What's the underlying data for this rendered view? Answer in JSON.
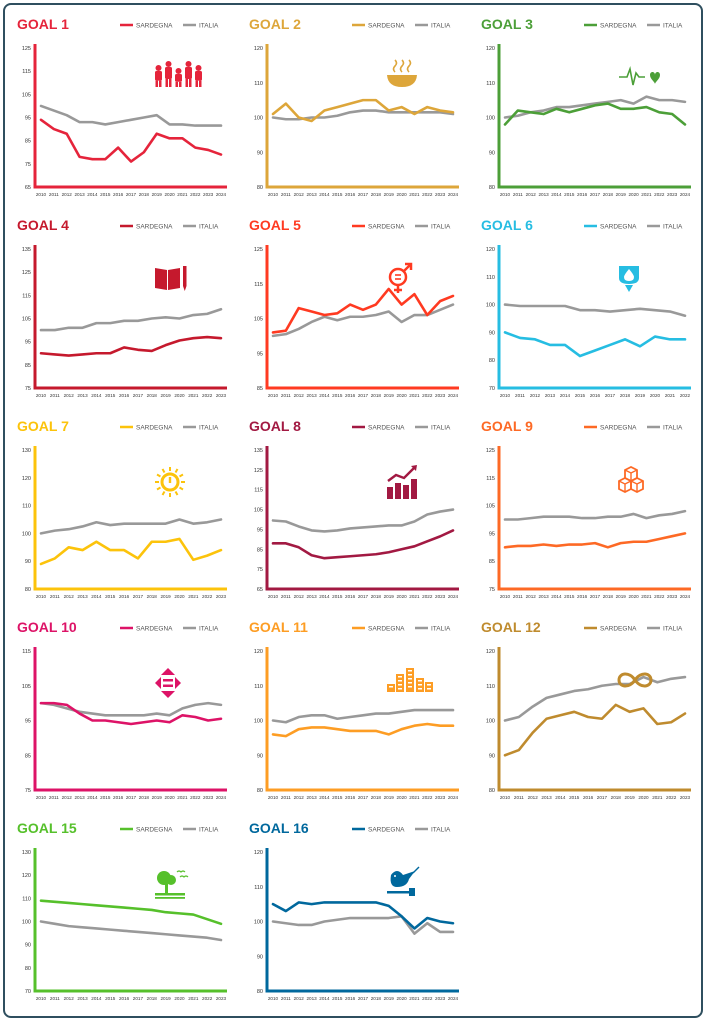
{
  "legend": {
    "sardegna": "SARDEGNA",
    "italia": "ITALIA",
    "italia_color": "#999999"
  },
  "chart_data": [
    {
      "type": "line",
      "title": "GOAL 1",
      "color": "#e5243b",
      "icon": "people-family-icon",
      "categories": [
        "2010",
        "2011",
        "2012",
        "2013",
        "2014",
        "2015",
        "2016",
        "2017",
        "2018",
        "2019",
        "2020",
        "2021",
        "2022",
        "2023",
        "2024"
      ],
      "ylim": [
        65,
        125
      ],
      "yticks": [
        65,
        75,
        85,
        95,
        105,
        115,
        125
      ],
      "series": [
        {
          "name": "SARDEGNA",
          "values": [
            94,
            90,
            88,
            78,
            77,
            77,
            82,
            76,
            80,
            88,
            86,
            86,
            82,
            81,
            79
          ]
        },
        {
          "name": "ITALIA",
          "values": [
            100,
            98,
            96,
            93,
            93,
            92,
            93,
            94,
            95,
            96,
            92,
            92,
            91.5,
            91.5,
            91.5
          ]
        }
      ]
    },
    {
      "type": "line",
      "title": "GOAL 2",
      "color": "#dda63a",
      "icon": "food-bowl-icon",
      "categories": [
        "2010",
        "2011",
        "2012",
        "2013",
        "2014",
        "2015",
        "2016",
        "2017",
        "2018",
        "2019",
        "2020",
        "2021",
        "2022",
        "2023",
        "2024"
      ],
      "ylim": [
        80,
        120
      ],
      "yticks": [
        80,
        90,
        100,
        110,
        120
      ],
      "series": [
        {
          "name": "SARDEGNA",
          "values": [
            101,
            104,
            100,
            99,
            102,
            103,
            104,
            105,
            105,
            102,
            103,
            101,
            103,
            102,
            101.5
          ]
        },
        {
          "name": "ITALIA",
          "values": [
            100,
            99.5,
            99.5,
            100,
            100,
            100.5,
            101.5,
            102,
            102,
            101.5,
            101.5,
            101.5,
            101.5,
            101.5,
            101
          ]
        }
      ]
    },
    {
      "type": "line",
      "title": "GOAL 3",
      "color": "#4c9f38",
      "icon": "heartbeat-icon",
      "categories": [
        "2010",
        "2011",
        "2012",
        "2013",
        "2014",
        "2015",
        "2016",
        "2017",
        "2018",
        "2019",
        "2020",
        "2021",
        "2022",
        "2023",
        "2024"
      ],
      "ylim": [
        80,
        120
      ],
      "yticks": [
        80,
        90,
        100,
        110,
        120
      ],
      "series": [
        {
          "name": "SARDEGNA",
          "values": [
            98,
            102,
            101.5,
            101,
            102.5,
            101.5,
            102.5,
            103.5,
            104,
            102.5,
            102.5,
            103,
            101.5,
            101,
            98
          ]
        },
        {
          "name": "ITALIA",
          "values": [
            100,
            100.5,
            101.5,
            102,
            103,
            103,
            103.5,
            104,
            104.5,
            105,
            104,
            106,
            105,
            105,
            104.5
          ]
        }
      ]
    },
    {
      "type": "line",
      "title": "GOAL 4",
      "color": "#c5192d",
      "icon": "book-pencil-icon",
      "categories": [
        "2010",
        "2011",
        "2012",
        "2013",
        "2014",
        "2015",
        "2016",
        "2017",
        "2018",
        "2019",
        "2020",
        "2021",
        "2022",
        "2023"
      ],
      "ylim": [
        75,
        135
      ],
      "yticks": [
        75,
        85,
        95,
        105,
        115,
        125,
        135
      ],
      "series": [
        {
          "name": "SARDEGNA",
          "values": [
            90,
            89.5,
            89,
            89.5,
            90,
            90,
            92.5,
            91.5,
            91,
            93.5,
            95.5,
            96.5,
            97,
            96.5
          ]
        },
        {
          "name": "ITALIA",
          "values": [
            100,
            100,
            101,
            101,
            103,
            103,
            104,
            104,
            105,
            105.5,
            105,
            106.5,
            107,
            109
          ]
        }
      ]
    },
    {
      "type": "line",
      "title": "GOAL 5",
      "color": "#ff3a21",
      "icon": "gender-equality-icon",
      "categories": [
        "2010",
        "2011",
        "2012",
        "2013",
        "2014",
        "2015",
        "2016",
        "2017",
        "2018",
        "2019",
        "2020",
        "2021",
        "2022",
        "2023",
        "2024"
      ],
      "ylim": [
        85,
        125
      ],
      "yticks": [
        85,
        95,
        105,
        115,
        125
      ],
      "series": [
        {
          "name": "SARDEGNA",
          "values": [
            101,
            101.5,
            108,
            107,
            106,
            106.5,
            109,
            107.5,
            109,
            113.5,
            109,
            112,
            106,
            110,
            111.5
          ]
        },
        {
          "name": "ITALIA",
          "values": [
            100,
            100.5,
            102,
            104,
            105.5,
            104.5,
            105.5,
            105.5,
            106,
            107,
            104,
            106,
            106,
            107.5,
            109
          ]
        }
      ]
    },
    {
      "type": "line",
      "title": "GOAL 6",
      "color": "#26bde2",
      "icon": "water-drop-icon",
      "categories": [
        "2010",
        "2011",
        "2012",
        "2013",
        "2014",
        "2015",
        "2016",
        "2017",
        "2018",
        "2019",
        "2020",
        "2021",
        "2022"
      ],
      "ylim": [
        70,
        120
      ],
      "yticks": [
        70,
        80,
        90,
        100,
        110,
        120
      ],
      "series": [
        {
          "name": "SARDEGNA",
          "values": [
            90,
            88,
            87.5,
            85.5,
            85.5,
            81.5,
            83.5,
            85.5,
            87.5,
            85,
            88.5,
            87.5,
            87.5
          ]
        },
        {
          "name": "ITALIA",
          "values": [
            100,
            99.5,
            99.5,
            99.5,
            99.5,
            98,
            98,
            97.5,
            98,
            98.5,
            98,
            97.5,
            96
          ]
        }
      ]
    },
    {
      "type": "line",
      "title": "GOAL 7",
      "color": "#fcc30b",
      "icon": "sun-power-icon",
      "categories": [
        "2010",
        "2011",
        "2012",
        "2013",
        "2014",
        "2015",
        "2016",
        "2017",
        "2018",
        "2019",
        "2020",
        "2021",
        "2022",
        "2023"
      ],
      "ylim": [
        80,
        130
      ],
      "yticks": [
        80,
        90,
        100,
        110,
        120,
        130
      ],
      "series": [
        {
          "name": "SARDEGNA",
          "values": [
            89,
            91,
            95,
            94,
            97,
            94,
            94,
            91,
            97,
            97,
            98,
            90.5,
            92,
            94
          ]
        },
        {
          "name": "ITALIA",
          "values": [
            100,
            101,
            101.5,
            102.5,
            104,
            103,
            103.5,
            103.5,
            103.5,
            103.5,
            105,
            103.5,
            104,
            105
          ]
        }
      ]
    },
    {
      "type": "line",
      "title": "GOAL 8",
      "color": "#a21942",
      "icon": "growth-chart-icon",
      "categories": [
        "2010",
        "2011",
        "2012",
        "2013",
        "2014",
        "2015",
        "2016",
        "2017",
        "2018",
        "2019",
        "2020",
        "2021",
        "2022",
        "2023",
        "2024"
      ],
      "ylim": [
        65,
        135
      ],
      "yticks": [
        65,
        75,
        85,
        95,
        105,
        115,
        125,
        135
      ],
      "series": [
        {
          "name": "SARDEGNA",
          "values": [
            88,
            88,
            86,
            82,
            80.5,
            81,
            81.5,
            82,
            82.5,
            83.5,
            85,
            86.5,
            89,
            91.5,
            94.5
          ]
        },
        {
          "name": "ITALIA",
          "values": [
            99.5,
            99,
            96.5,
            94.5,
            94,
            94.5,
            95.5,
            96,
            96.5,
            97,
            97,
            99,
            102.5,
            104,
            105
          ]
        }
      ]
    },
    {
      "type": "line",
      "title": "GOAL 9",
      "color": "#fd6925",
      "icon": "cubes-icon",
      "categories": [
        "2010",
        "2011",
        "2012",
        "2013",
        "2014",
        "2015",
        "2016",
        "2017",
        "2018",
        "2019",
        "2020",
        "2021",
        "2022",
        "2023",
        "2024"
      ],
      "ylim": [
        75,
        125
      ],
      "yticks": [
        75,
        85,
        95,
        105,
        115,
        125
      ],
      "series": [
        {
          "name": "SARDEGNA",
          "values": [
            90,
            90.5,
            90.5,
            91,
            90.5,
            91,
            91,
            91.5,
            90,
            91.5,
            92,
            92,
            93,
            94,
            95
          ]
        },
        {
          "name": "ITALIA",
          "values": [
            100,
            100,
            100.5,
            101,
            101,
            101,
            100.5,
            100.5,
            101,
            101,
            102,
            100.5,
            101.5,
            102,
            103
          ]
        }
      ]
    },
    {
      "type": "line",
      "title": "GOAL 10",
      "color": "#dd1367",
      "icon": "inequality-arrows-icon",
      "categories": [
        "2010",
        "2011",
        "2012",
        "2013",
        "2014",
        "2015",
        "2016",
        "2017",
        "2018",
        "2019",
        "2020",
        "2021",
        "2022",
        "2023",
        "2024"
      ],
      "ylim": [
        75,
        115
      ],
      "yticks": [
        75,
        85,
        95,
        105,
        115
      ],
      "series": [
        {
          "name": "SARDEGNA",
          "values": [
            100,
            100,
            99.5,
            97,
            95,
            95,
            94.5,
            94,
            94.5,
            95,
            94.5,
            96.5,
            96,
            95,
            95.5
          ]
        },
        {
          "name": "ITALIA",
          "values": [
            100,
            99.5,
            98.5,
            97.5,
            97,
            96.5,
            96.5,
            96.5,
            96.5,
            97,
            96.5,
            98.5,
            99.5,
            100,
            99.5
          ]
        }
      ]
    },
    {
      "type": "line",
      "title": "GOAL 11",
      "color": "#fd9d24",
      "icon": "city-buildings-icon",
      "categories": [
        "2010",
        "2011",
        "2012",
        "2013",
        "2014",
        "2015",
        "2016",
        "2017",
        "2018",
        "2019",
        "2020",
        "2021",
        "2022",
        "2023",
        "2024"
      ],
      "ylim": [
        80,
        120
      ],
      "yticks": [
        80,
        90,
        100,
        110,
        120
      ],
      "series": [
        {
          "name": "SARDEGNA",
          "values": [
            96,
            95.5,
            97.5,
            98,
            98,
            97.5,
            97,
            97,
            97,
            96,
            97.5,
            98.5,
            99,
            98.5,
            98.5
          ]
        },
        {
          "name": "ITALIA",
          "values": [
            100,
            99.5,
            101,
            101.5,
            101.5,
            100.5,
            101,
            101.5,
            102,
            102,
            102.5,
            103,
            103,
            103,
            103
          ]
        }
      ]
    },
    {
      "type": "line",
      "title": "GOAL 12",
      "color": "#bf8b2e",
      "icon": "infinity-loop-icon",
      "categories": [
        "2010",
        "2011",
        "2012",
        "2013",
        "2014",
        "2015",
        "2016",
        "2017",
        "2018",
        "2019",
        "2020",
        "2021",
        "2022",
        "2023"
      ],
      "ylim": [
        80,
        120
      ],
      "yticks": [
        80,
        90,
        100,
        110,
        120
      ],
      "series": [
        {
          "name": "SARDEGNA",
          "values": [
            90,
            91.5,
            96.5,
            100.5,
            101.5,
            102.5,
            101,
            100.5,
            104.5,
            102.5,
            103.5,
            99,
            99.5,
            102
          ]
        },
        {
          "name": "ITALIA",
          "values": [
            100,
            101,
            104,
            106.5,
            107.5,
            108.5,
            109,
            110,
            110.5,
            110.5,
            112.5,
            111,
            112,
            112.5
          ]
        }
      ]
    },
    {
      "type": "line",
      "title": "GOAL 15",
      "color": "#56c02b",
      "icon": "tree-bird-icon",
      "categories": [
        "2010",
        "2011",
        "2012",
        "2013",
        "2014",
        "2015",
        "2016",
        "2017",
        "2018",
        "2019",
        "2020",
        "2021",
        "2022",
        "2023"
      ],
      "ylim": [
        70,
        130
      ],
      "yticks": [
        70,
        80,
        90,
        100,
        110,
        120,
        130
      ],
      "series": [
        {
          "name": "SARDEGNA",
          "values": [
            109,
            108.5,
            108,
            107.5,
            107,
            106.5,
            106,
            105.5,
            105,
            104,
            103.5,
            103,
            101,
            99
          ]
        },
        {
          "name": "ITALIA",
          "values": [
            100,
            99,
            98,
            97.5,
            97,
            96.5,
            96,
            95.5,
            95,
            94.5,
            94,
            93.5,
            93,
            92
          ]
        }
      ]
    },
    {
      "type": "line",
      "title": "GOAL 16",
      "color": "#00689d",
      "icon": "dove-gavel-icon",
      "categories": [
        "2010",
        "2011",
        "2012",
        "2013",
        "2014",
        "2015",
        "2016",
        "2017",
        "2018",
        "2019",
        "2020",
        "2021",
        "2022",
        "2023",
        "2024"
      ],
      "ylim": [
        80,
        120
      ],
      "yticks": [
        80,
        90,
        100,
        110,
        120
      ],
      "series": [
        {
          "name": "SARDEGNA",
          "values": [
            105,
            103,
            105.5,
            105,
            105.5,
            105.5,
            105.5,
            105.5,
            105.5,
            104.5,
            101.5,
            98,
            101,
            100,
            99.5
          ]
        },
        {
          "name": "ITALIA",
          "values": [
            100,
            99.5,
            99,
            99,
            100,
            100.5,
            101,
            101,
            101,
            101,
            101.5,
            96.5,
            99.5,
            97,
            97
          ]
        }
      ]
    }
  ]
}
